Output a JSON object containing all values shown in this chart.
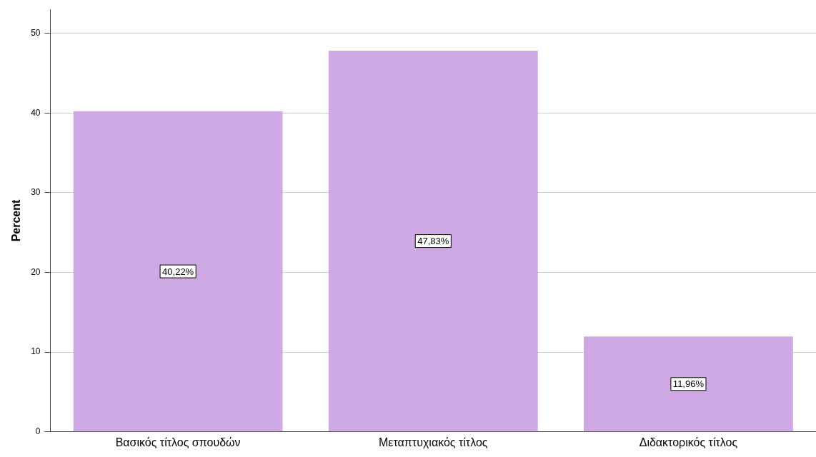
{
  "chart_data": {
    "type": "bar",
    "ylabel": "Percent",
    "categories": [
      "Βασικός τίτλος σπουδών",
      "Μεταπτυχιακός τίτλος",
      "Διδακτορικός τίτλος"
    ],
    "values": [
      40.22,
      47.83,
      11.96
    ],
    "value_labels": [
      "40,22%",
      "47,83%",
      "11,96%"
    ],
    "color": "#cfa9e3",
    "ylim": [
      0,
      53
    ],
    "yticks": [
      0,
      10,
      20,
      30,
      40,
      50
    ],
    "grid": "y",
    "legend": false
  }
}
